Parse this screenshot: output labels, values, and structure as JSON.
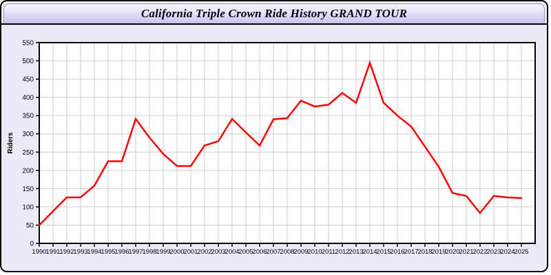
{
  "header": {
    "title": "California Triple Crown Ride History GRAND TOUR"
  },
  "colors": {
    "line": "#ff0000",
    "grid": "#cccccc",
    "plot_background": "#ffffff",
    "page_background": "#ebebf8",
    "axis": "#000000",
    "tick_label": "#000020"
  },
  "chart_data": {
    "type": "line",
    "title": "California Triple Crown Ride History GRAND TOUR",
    "xlabel": "",
    "ylabel": "Riders",
    "categories": [
      1990,
      1991,
      1992,
      1993,
      1994,
      1995,
      1996,
      1997,
      1998,
      1999,
      2000,
      2001,
      2002,
      2003,
      2004,
      2005,
      2006,
      2007,
      2008,
      2009,
      2010,
      2011,
      2012,
      2013,
      2014,
      2015,
      2016,
      2017,
      2018,
      2019,
      2020,
      2021,
      2022,
      2023,
      2024,
      2025
    ],
    "values": [
      50,
      88,
      126,
      126,
      158,
      225,
      225,
      341,
      290,
      245,
      212,
      212,
      268,
      280,
      341,
      304,
      268,
      340,
      343,
      391,
      375,
      380,
      412,
      385,
      495,
      385,
      350,
      320,
      265,
      210,
      138,
      130,
      83,
      130,
      126,
      124
    ],
    "ylim": [
      0,
      550
    ],
    "ytick_step": 50,
    "grid": true,
    "legend_position": "none",
    "series_name": "Riders"
  }
}
